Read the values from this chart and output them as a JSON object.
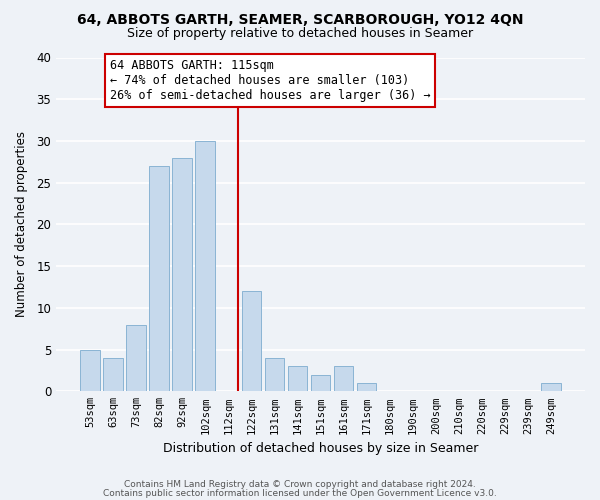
{
  "title": "64, ABBOTS GARTH, SEAMER, SCARBOROUGH, YO12 4QN",
  "subtitle": "Size of property relative to detached houses in Seamer",
  "xlabel": "Distribution of detached houses by size in Seamer",
  "ylabel": "Number of detached properties",
  "bar_labels": [
    "53sqm",
    "63sqm",
    "73sqm",
    "82sqm",
    "92sqm",
    "102sqm",
    "112sqm",
    "122sqm",
    "131sqm",
    "141sqm",
    "151sqm",
    "161sqm",
    "171sqm",
    "180sqm",
    "190sqm",
    "200sqm",
    "210sqm",
    "220sqm",
    "229sqm",
    "239sqm",
    "249sqm"
  ],
  "bar_values": [
    5,
    4,
    8,
    27,
    28,
    30,
    0,
    12,
    4,
    3,
    2,
    3,
    1,
    0,
    0,
    0,
    0,
    0,
    0,
    0,
    1
  ],
  "bar_color": "#c6d9ec",
  "bar_edge_color": "#8ab4d4",
  "property_line_color": "#cc0000",
  "ylim": [
    0,
    40
  ],
  "yticks": [
    0,
    5,
    10,
    15,
    20,
    25,
    30,
    35,
    40
  ],
  "annotation_title": "64 ABBOTS GARTH: 115sqm",
  "annotation_line1": "← 74% of detached houses are smaller (103)",
  "annotation_line2": "26% of semi-detached houses are larger (36) →",
  "annotation_box_color": "#ffffff",
  "annotation_box_edge": "#cc0000",
  "footer1": "Contains HM Land Registry data © Crown copyright and database right 2024.",
  "footer2": "Contains public sector information licensed under the Open Government Licence v3.0.",
  "bg_color": "#eef2f7",
  "grid_color": "#ffffff"
}
